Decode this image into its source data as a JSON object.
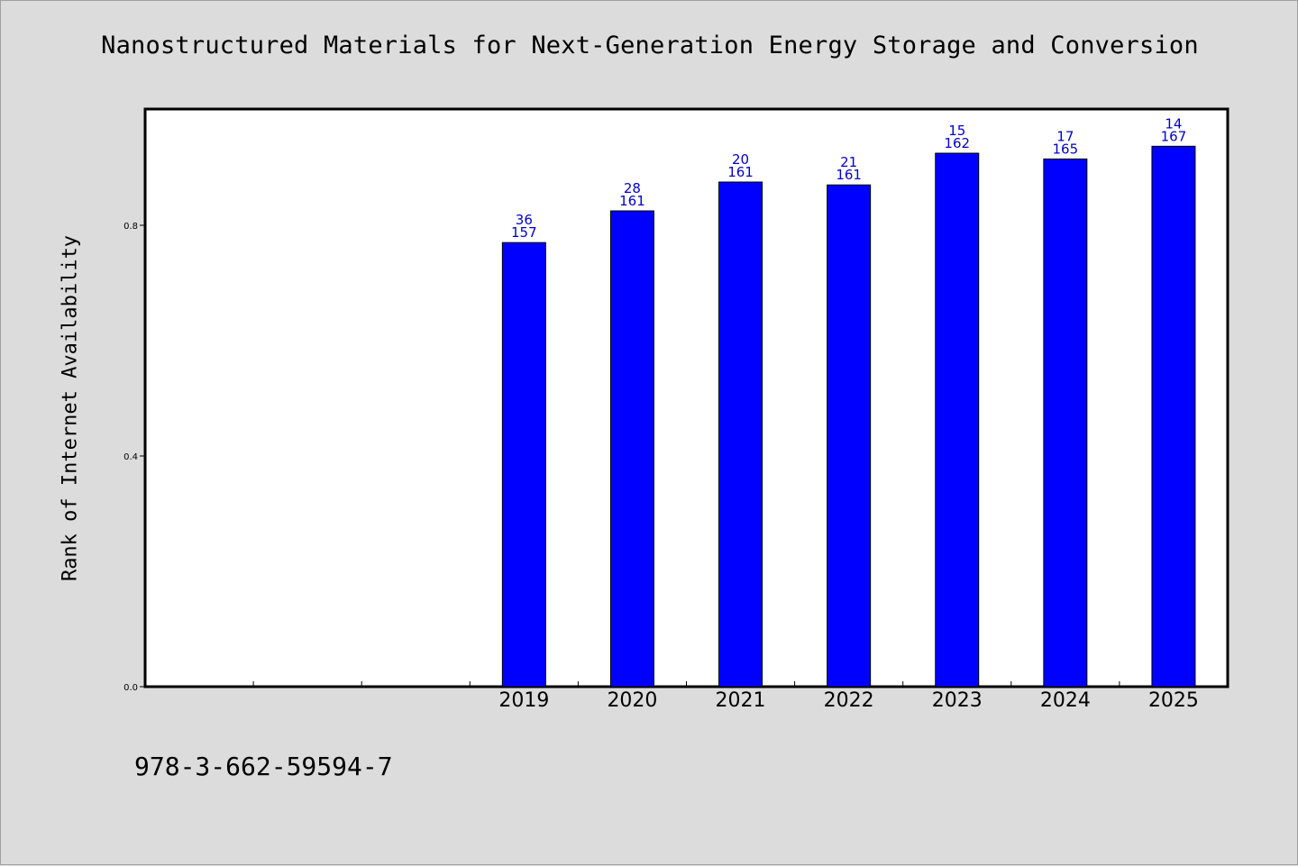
{
  "title": "Nanostructured Materials for Next-Generation Energy Storage and Conversion",
  "footer": "978-3-662-59594-7",
  "colors": {
    "background": "#dcdcdc",
    "plot_area": "#ffffff",
    "bar": "#0000ff",
    "bar_label": "#0000cc"
  },
  "chart_data": {
    "type": "bar",
    "title": "Nanostructured Materials for Next-Generation Energy Storage and Conversion",
    "xlabel": "",
    "ylabel": "Rank of Internet Availability",
    "categories": [
      "",
      "",
      "",
      "2019",
      "2020",
      "2021",
      "2022",
      "2023",
      "2024",
      "2025"
    ],
    "values": [
      null,
      null,
      null,
      0.77,
      0.825,
      0.875,
      0.87,
      0.925,
      0.915,
      0.937
    ],
    "labels_top": [
      "",
      "",
      "",
      "36",
      "28",
      "20",
      "21",
      "15",
      "17",
      "14"
    ],
    "labels_bottom": [
      "",
      "",
      "",
      "157",
      "161",
      "161",
      "161",
      "162",
      "165",
      "167"
    ],
    "yticks": [
      0.0,
      0.4,
      0.8
    ],
    "ytick_labels": [
      "0.0",
      "0.4",
      "0.8"
    ],
    "ylim": [
      0,
      1.0
    ],
    "grid": false,
    "legend": "none"
  }
}
